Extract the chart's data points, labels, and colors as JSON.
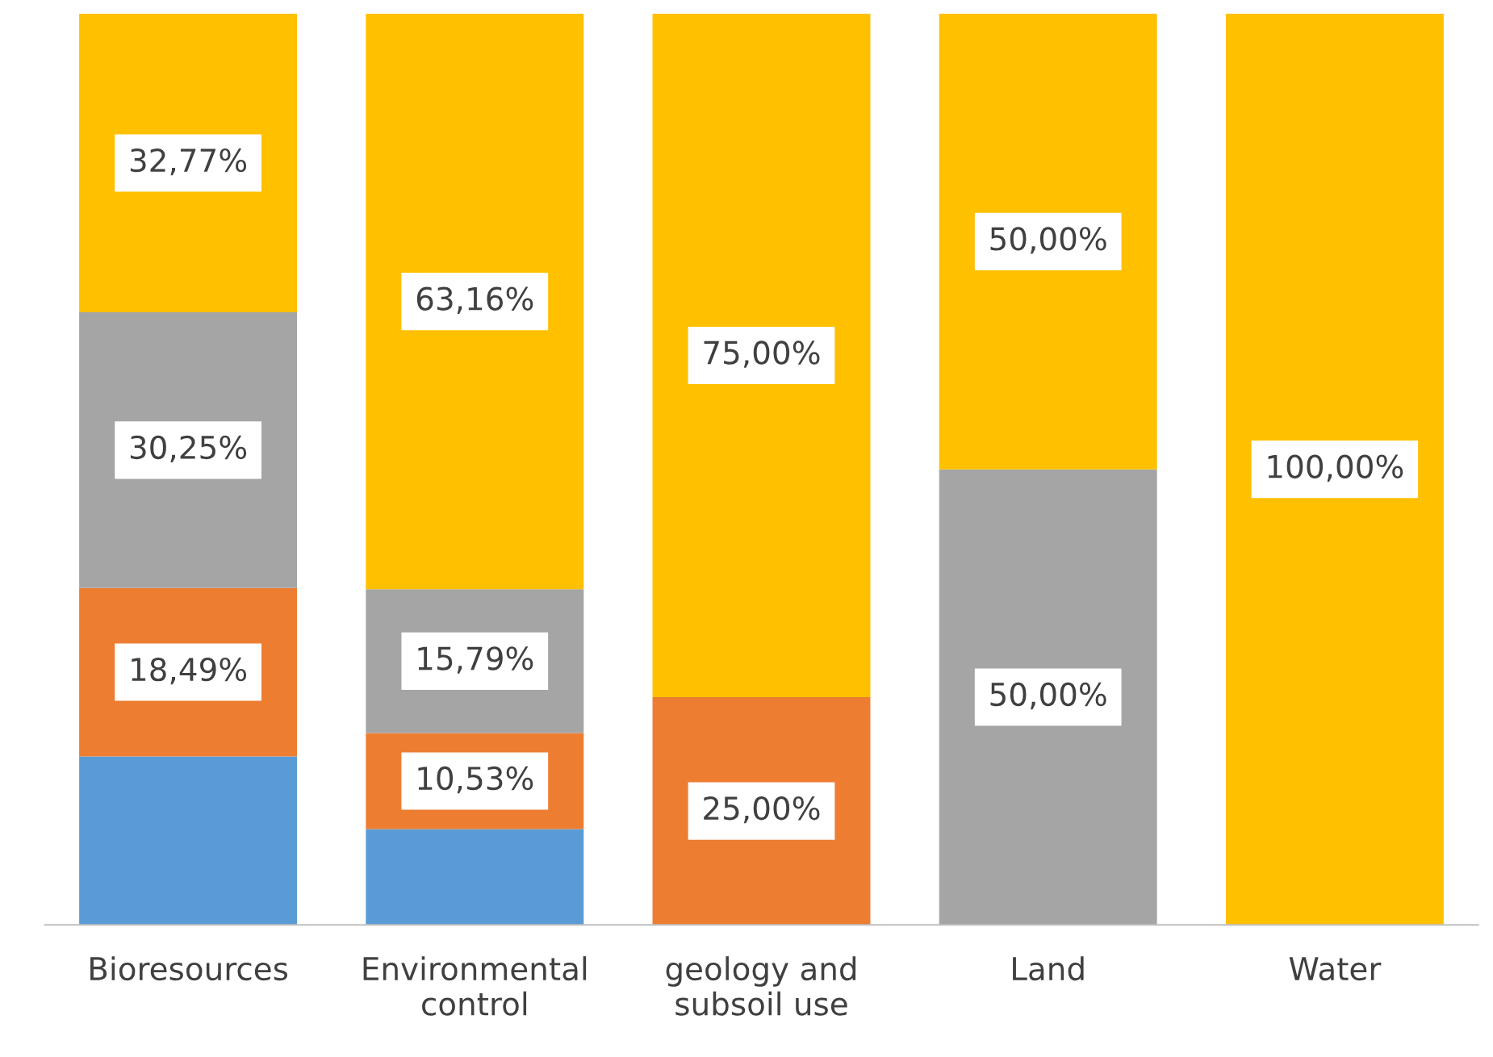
{
  "chart_data": {
    "type": "bar",
    "stacked": true,
    "categories": [
      "Bioresources",
      "Environmental\ncontrol",
      "geology and\nsubsoil use",
      "Land",
      "Water"
    ],
    "series": [
      {
        "color": "#5b9bd5",
        "values": [
          18.49,
          10.52,
          0,
          0,
          0
        ],
        "value_labels": [
          null,
          null,
          null,
          null,
          null
        ]
      },
      {
        "color": "#ed7d31",
        "values": [
          18.49,
          10.53,
          25.0,
          0,
          0
        ],
        "value_labels": [
          "18,49%",
          "10,53%",
          "25,00%",
          null,
          null
        ]
      },
      {
        "color": "#a5a5a5",
        "values": [
          30.25,
          15.79,
          0,
          50.0,
          0
        ],
        "value_labels": [
          "30,25%",
          "15,79%",
          null,
          "50,00%",
          null
        ]
      },
      {
        "color": "#ffc000",
        "values": [
          32.77,
          63.16,
          75.0,
          50.0,
          100.0
        ],
        "value_labels": [
          "32,77%",
          "63,16%",
          "75,00%",
          "50,00%",
          "100,00%"
        ]
      }
    ],
    "ylim": [
      0,
      100
    ],
    "tick_labels": "x",
    "grid": false,
    "legend": false
  }
}
